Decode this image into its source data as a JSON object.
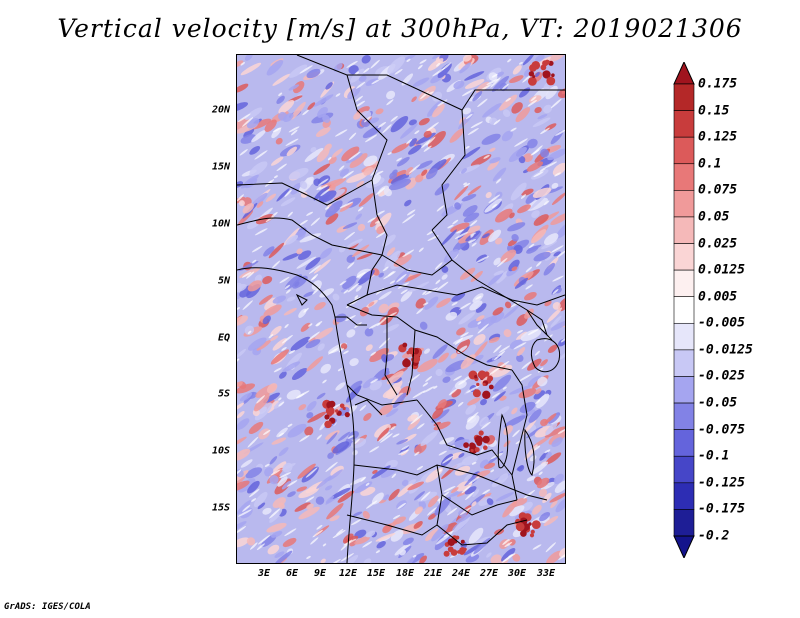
{
  "title": "Vertical velocity [m/s] at 300hPa, VT: 2019021306",
  "footer": "GrADS: IGES/COLA",
  "map": {
    "region": "Central Africa",
    "lat_range": [
      -20,
      25
    ],
    "lon_range": [
      0,
      35
    ],
    "lat_labels": [
      "20N",
      "15N",
      "10N",
      "5N",
      "EQ",
      "5S",
      "10S",
      "15S"
    ],
    "lon_labels": [
      "3E",
      "6E",
      "9E",
      "12E",
      "15E",
      "18E",
      "21E",
      "24E",
      "27E",
      "30E",
      "33E"
    ]
  },
  "colorbar": {
    "levels": [
      "0.175",
      "0.15",
      "0.125",
      "0.1",
      "0.075",
      "0.05",
      "0.025",
      "0.0125",
      "0.005",
      "-0.005",
      "-0.0125",
      "-0.025",
      "-0.05",
      "-0.075",
      "-0.1",
      "-0.125",
      "-0.175",
      "-0.2"
    ],
    "colors": [
      "#a0141e",
      "#b42828",
      "#c83c3c",
      "#dc5a5a",
      "#e87878",
      "#f09a9a",
      "#f5b9b9",
      "#fad5d5",
      "#fdf0f0",
      "#ffffff",
      "#e6e6fa",
      "#c8c8f5",
      "#a5a5f0",
      "#8282e6",
      "#6464dc",
      "#4646c8",
      "#2d2db4",
      "#1e1e96",
      "#14148c"
    ]
  }
}
